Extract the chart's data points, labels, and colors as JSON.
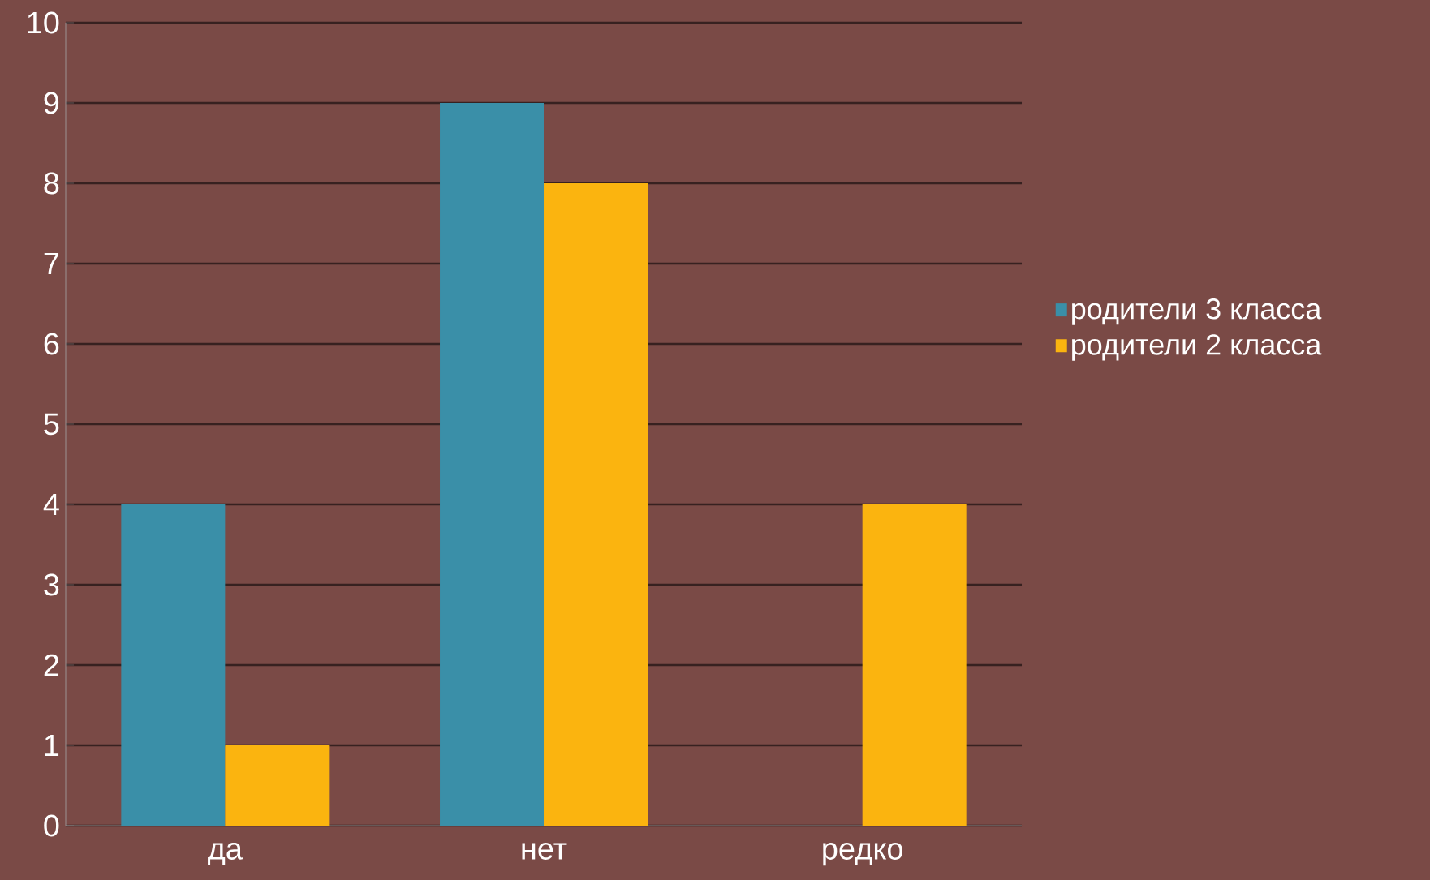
{
  "chart_data": {
    "type": "bar",
    "categories": [
      "да",
      "нет",
      "редко"
    ],
    "series": [
      {
        "name": "родители 3 класса",
        "color": "#3a8fa8",
        "values": [
          4,
          9,
          0
        ]
      },
      {
        "name": "родители 2 класса",
        "color": "#fbb40f",
        "values": [
          1,
          8,
          4
        ]
      }
    ],
    "ylim": [
      0,
      10
    ],
    "yticks": [
      0,
      1,
      2,
      3,
      4,
      5,
      6,
      7,
      8,
      9,
      10
    ],
    "grid": "y",
    "legend": "right"
  }
}
